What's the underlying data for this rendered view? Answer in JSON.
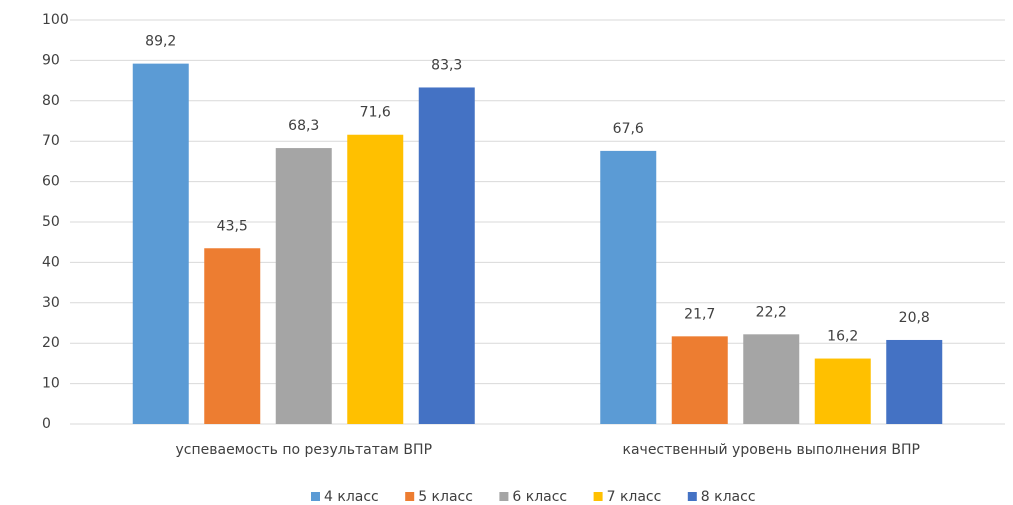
{
  "chart_data": {
    "type": "bar",
    "categories": [
      "успеваемость по результатам ВПР",
      "качественный уровень выполнения ВПР"
    ],
    "series": [
      {
        "name": "4 класс",
        "color": "#5b9bd5",
        "values": [
          89.2,
          67.6
        ],
        "value_labels": [
          "89,2",
          "67,6"
        ]
      },
      {
        "name": "5 класс",
        "color": "#ed7d31",
        "values": [
          43.5,
          21.7
        ],
        "value_labels": [
          "43,5",
          "21,7"
        ]
      },
      {
        "name": "6 класс",
        "color": "#a5a5a5",
        "values": [
          68.3,
          22.2
        ],
        "value_labels": [
          "68,3",
          "22,2"
        ]
      },
      {
        "name": "7 класс",
        "color": "#ffc000",
        "values": [
          71.6,
          16.2
        ],
        "value_labels": [
          "71,6",
          "16,2"
        ]
      },
      {
        "name": "8 класс",
        "color": "#4472c4",
        "values": [
          83.3,
          20.8
        ],
        "value_labels": [
          "83,3",
          "20,8"
        ]
      }
    ],
    "ylim": [
      0,
      100
    ],
    "yticks": [
      0,
      10,
      20,
      30,
      40,
      50,
      60,
      70,
      80,
      90,
      100
    ],
    "grid": true,
    "legend": "bottom"
  }
}
